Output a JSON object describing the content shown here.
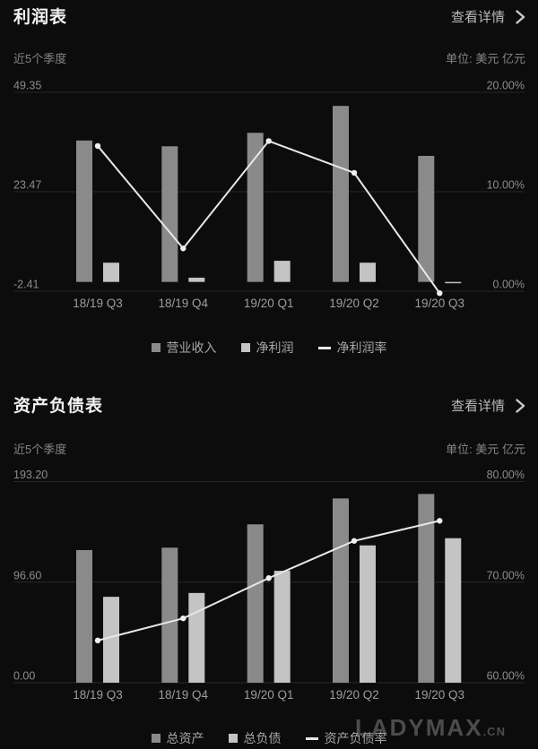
{
  "sections": [
    {
      "title": "利润表",
      "details_label": "查看详情",
      "period": "近5个季度",
      "unit": "单位: 美元 亿元"
    },
    {
      "title": "资产负债表",
      "details_label": "查看详情",
      "period": "近5个季度",
      "unit": "单位: 美元 亿元"
    }
  ],
  "watermark": {
    "brand": "LADYMAX",
    "tld": ".CN"
  },
  "colors": {
    "bar_dark": "#8a8a8a",
    "bar_light": "#c4c4c4",
    "line": "#e8e8e8",
    "marker": "#f0f0f0",
    "grid": "#282828",
    "axis_text": "#8c8c8c",
    "xlabel_text": "#9d9d9d"
  },
  "chart_data": [
    {
      "type": "bar",
      "title": "利润表",
      "categories": [
        "18/19 Q3",
        "18/19 Q4",
        "19/20 Q1",
        "19/20 Q2",
        "19/20 Q3"
      ],
      "series": [
        {
          "name": "营业收入",
          "kind": "bar",
          "axis": "left",
          "color": "#8a8a8a",
          "values": [
            36.8,
            35.3,
            38.8,
            45.8,
            32.8
          ]
        },
        {
          "name": "净利润",
          "kind": "bar",
          "axis": "left",
          "color": "#c4c4c4",
          "values": [
            5.0,
            1.1,
            5.5,
            5.0,
            -0.3
          ]
        },
        {
          "name": "净利润率",
          "kind": "line",
          "axis": "right",
          "color": "#e8e8e8",
          "values": [
            14.6,
            4.3,
            15.1,
            11.9,
            -0.2
          ],
          "unit": "%"
        }
      ],
      "left_axis": {
        "min": -2.41,
        "max": 49.35,
        "ticks": [
          "49.35",
          "23.47",
          "-2.41"
        ]
      },
      "right_axis": {
        "min": 0,
        "max": 20,
        "ticks": [
          "20.00%",
          "10.00%",
          "0.00%"
        ]
      },
      "grid": true,
      "legend_position": "bottom"
    },
    {
      "type": "bar",
      "title": "资产负债表",
      "categories": [
        "18/19 Q3",
        "18/19 Q4",
        "19/20 Q1",
        "19/20 Q2",
        "19/20 Q3"
      ],
      "series": [
        {
          "name": "总资产",
          "kind": "bar",
          "axis": "left",
          "color": "#8a8a8a",
          "values": [
            127.4,
            129.7,
            152.1,
            177.0,
            181.3
          ]
        },
        {
          "name": "总负债",
          "kind": "bar",
          "axis": "left",
          "color": "#c4c4c4",
          "values": [
            82.5,
            86.2,
            107.5,
            131.9,
            138.8
          ]
        },
        {
          "name": "资产负债率",
          "kind": "line",
          "axis": "right",
          "color": "#e8e8e8",
          "values": [
            64.2,
            66.4,
            70.4,
            74.1,
            76.1
          ],
          "unit": "%"
        }
      ],
      "left_axis": {
        "min": 0,
        "max": 193.2,
        "ticks": [
          "193.20",
          "96.60",
          "0.00"
        ]
      },
      "right_axis": {
        "min": 60,
        "max": 80,
        "ticks": [
          "80.00%",
          "70.00%",
          "60.00%"
        ]
      },
      "grid": true,
      "legend_position": "bottom"
    }
  ]
}
